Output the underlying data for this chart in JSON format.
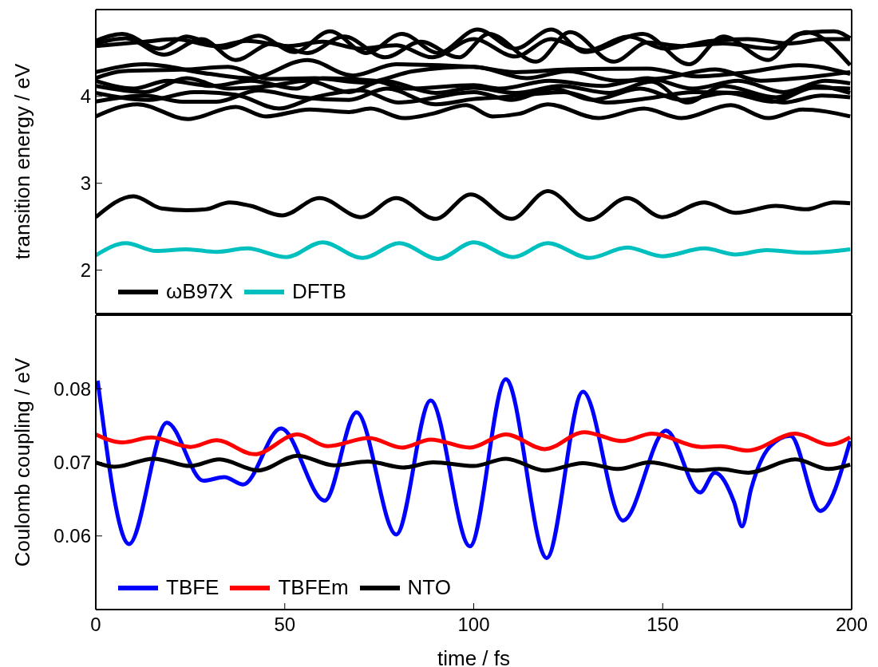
{
  "chart_data": [
    {
      "type": "line",
      "ylabel": "transition energy / eV",
      "xlim": [
        0,
        200
      ],
      "xticks": [
        0,
        50,
        100,
        150,
        200
      ],
      "ylim": [
        1.5,
        5
      ],
      "yticks": [
        2,
        3,
        4
      ],
      "tick_labels": "y",
      "legend": "bottom left",
      "series": [
        {
          "name": "ωB97X",
          "color": "#000000",
          "x": [
            0,
            11,
            24.4,
            37,
            45,
            56.7,
            67,
            72.7,
            81.6,
            89,
            98,
            105,
            112,
            119.6,
            133,
            145,
            155,
            168,
            178,
            187,
            199.6
          ],
          "values": [
            3.77,
            3.91,
            3.74,
            3.88,
            3.77,
            3.85,
            3.82,
            3.86,
            3.75,
            3.8,
            3.9,
            3.77,
            3.8,
            3.91,
            3.75,
            3.86,
            3.75,
            3.9,
            3.75,
            3.85,
            3.77
          ]
        },
        {
          "color": "#000000",
          "x": [
            0,
            7,
            16.7,
            24,
            33.7,
            43,
            52.6,
            62,
            71.6,
            81,
            90.6,
            101,
            111,
            120.5,
            129.5,
            144.7,
            157,
            166,
            178,
            186,
            195.4,
            199.6
          ],
          "values": [
            4.64,
            4.72,
            4.55,
            4.69,
            4.56,
            4.7,
            4.51,
            4.75,
            4.5,
            4.72,
            4.5,
            4.77,
            4.55,
            4.77,
            4.51,
            4.72,
            4.37,
            4.69,
            4.42,
            4.72,
            4.75,
            4.67
          ]
        },
        {
          "color": "#000000",
          "x": [
            0,
            8,
            18,
            28,
            37,
            46.7,
            56,
            65.7,
            76.6,
            86,
            96,
            104,
            116.5,
            125.5,
            137,
            146,
            155,
            166,
            179,
            188,
            199.6
          ],
          "values": [
            4.61,
            4.67,
            4.48,
            4.66,
            4.42,
            4.61,
            4.5,
            4.69,
            4.45,
            4.63,
            4.45,
            4.72,
            4.4,
            4.74,
            4.4,
            4.62,
            4.58,
            4.61,
            4.55,
            4.74,
            4.36
          ]
        },
        {
          "color": "#000000",
          "x": [
            0,
            13,
            21,
            32,
            40,
            51,
            60,
            70,
            79.5,
            89,
            100,
            111,
            120.5,
            130,
            141,
            150.5,
            163,
            172.5,
            183.5,
            193,
            199.6
          ],
          "values": [
            4.58,
            4.63,
            4.66,
            4.58,
            4.64,
            4.58,
            4.63,
            4.55,
            4.59,
            4.45,
            4.66,
            4.46,
            4.66,
            4.53,
            4.69,
            4.55,
            4.64,
            4.66,
            4.61,
            4.66,
            4.66
          ]
        },
        {
          "color": "#000000",
          "x": [
            0,
            13,
            30,
            41,
            56,
            68,
            79.5,
            100,
            111,
            125,
            146,
            159,
            172.5,
            186,
            199.6
          ],
          "values": [
            4.28,
            4.37,
            4.26,
            4.21,
            4.42,
            4.24,
            4.37,
            4.34,
            4.28,
            4.31,
            4.32,
            4.23,
            4.28,
            4.36,
            4.26
          ]
        },
        {
          "color": "#000000",
          "x": [
            0,
            7,
            24,
            35,
            46,
            58,
            71,
            84,
            100,
            114,
            125,
            138,
            150,
            164,
            176,
            186,
            199.6
          ],
          "values": [
            4.21,
            4.29,
            4.31,
            4.34,
            4.2,
            4.21,
            4.16,
            4.29,
            4.34,
            4.21,
            4.29,
            4.18,
            4.21,
            4.31,
            4.18,
            4.21,
            4.28
          ]
        },
        {
          "color": "#000000",
          "x": [
            0,
            10,
            19,
            31,
            41,
            53,
            60,
            74,
            82,
            100,
            107,
            120,
            134,
            146,
            158,
            170,
            182,
            193,
            199.6
          ],
          "values": [
            4.18,
            4.09,
            4.18,
            4.12,
            4.18,
            4.09,
            4.21,
            4.18,
            4.09,
            4.13,
            4.09,
            4.18,
            4.12,
            4.21,
            4.09,
            4.18,
            4.05,
            4.18,
            4.15
          ]
        },
        {
          "color": "#000000",
          "x": [
            0,
            13,
            24,
            35,
            46,
            56,
            67,
            76,
            90,
            100,
            111,
            123,
            136,
            147,
            156.5,
            166,
            180,
            190,
            199.6
          ],
          "values": [
            4.12,
            4.05,
            4.21,
            4.09,
            4.12,
            4.18,
            4.05,
            4.18,
            4.04,
            4.1,
            4.04,
            4.12,
            4.04,
            4.17,
            3.93,
            4.12,
            3.99,
            4.12,
            4.04
          ]
        },
        {
          "color": "#000000",
          "x": [
            0,
            14,
            26,
            37,
            48.5,
            58,
            70,
            80,
            100,
            110,
            121,
            131.5,
            144,
            155,
            167,
            179,
            190,
            199.6
          ],
          "values": [
            4.04,
            3.96,
            4.05,
            4.02,
            3.86,
            3.99,
            4.07,
            3.93,
            4.05,
            3.96,
            4.09,
            3.96,
            4.09,
            3.96,
            4.04,
            3.94,
            4.1,
            4.09
          ]
        },
        {
          "color": "#000000",
          "x": [
            0,
            13,
            23,
            32,
            43,
            54,
            67,
            77,
            90,
            100,
            107,
            124,
            135,
            148,
            158,
            170,
            182,
            192,
            199.6
          ],
          "values": [
            3.94,
            4.01,
            3.94,
            3.94,
            4.07,
            3.99,
            3.96,
            4.09,
            3.91,
            3.97,
            3.99,
            4.05,
            3.93,
            3.99,
            4.05,
            4.04,
            3.93,
            4.01,
            3.99
          ]
        },
        {
          "color": "#000000",
          "x": [
            0,
            10,
            17.4,
            24,
            29,
            35.4,
            41,
            49.3,
            59.2,
            70.2,
            79.5,
            89.9,
            99.2,
            110,
            119.6,
            130.6,
            140.6,
            149.9,
            161,
            169.3,
            180,
            188,
            195.3,
            199.6
          ],
          "values": [
            2.61,
            2.85,
            2.71,
            2.69,
            2.7,
            2.78,
            2.74,
            2.63,
            2.83,
            2.61,
            2.83,
            2.59,
            2.87,
            2.59,
            2.91,
            2.58,
            2.83,
            2.61,
            2.78,
            2.66,
            2.74,
            2.7,
            2.78,
            2.77
          ]
        },
        {
          "name": "DFTB",
          "color": "#00bfbf",
          "x": [
            0,
            8,
            16,
            24,
            32,
            40,
            50.5,
            60,
            70.6,
            80.3,
            90.6,
            100,
            110.4,
            119.6,
            130.6,
            140.6,
            149.9,
            161,
            169.3,
            177.5,
            188,
            199.6
          ],
          "values": [
            2.17,
            2.31,
            2.22,
            2.24,
            2.21,
            2.25,
            2.15,
            2.32,
            2.14,
            2.31,
            2.13,
            2.32,
            2.15,
            2.31,
            2.14,
            2.26,
            2.16,
            2.25,
            2.18,
            2.23,
            2.2,
            2.24
          ]
        }
      ]
    },
    {
      "type": "line",
      "xlabel": "time / fs",
      "ylabel": "Coulomb coupling / eV",
      "xlim": [
        0,
        200
      ],
      "xticks": [
        0,
        50,
        100,
        150,
        200
      ],
      "ylim": [
        0.05,
        0.09
      ],
      "yticks": [
        0.06,
        0.07,
        0.08
      ],
      "legend": "bottom left",
      "series": [
        {
          "name": "TBFE",
          "color": "#0000ff",
          "x": [
            0.5,
            8.8,
            18.8,
            28.5,
            34,
            39,
            49,
            60.6,
            69,
            79.5,
            88.6,
            99,
            108.5,
            119.3,
            128.9,
            139.5,
            150.9,
            159.9,
            163.8,
            168.9,
            171,
            173.4,
            178.3,
            183.8,
            191.7,
            199.6
          ],
          "values": [
            0.0811,
            0.0589,
            0.0754,
            0.0675,
            0.068,
            0.067,
            0.0746,
            0.0648,
            0.0768,
            0.0602,
            0.0784,
            0.0586,
            0.0813,
            0.057,
            0.0796,
            0.0621,
            0.0743,
            0.0659,
            0.0686,
            0.0646,
            0.0613,
            0.0664,
            0.0721,
            0.0736,
            0.0634,
            0.0729
          ]
        },
        {
          "name": "TBFEm",
          "color": "#ff0000",
          "x": [
            0,
            7,
            14.7,
            25,
            32,
            42,
            53.4,
            61.3,
            72.3,
            81,
            88.6,
            99,
            108.5,
            118.8,
            129.2,
            139.3,
            147.2,
            160.2,
            165.4,
            172.5,
            185.1,
            194.2,
            199.6
          ],
          "values": [
            0.0738,
            0.0727,
            0.0734,
            0.0721,
            0.073,
            0.0711,
            0.0738,
            0.0722,
            0.0733,
            0.072,
            0.0731,
            0.072,
            0.0738,
            0.0718,
            0.0741,
            0.0729,
            0.0739,
            0.0721,
            0.0722,
            0.0716,
            0.0739,
            0.0724,
            0.0734
          ]
        },
        {
          "name": "NTO",
          "color": "#000000",
          "x": [
            0,
            5,
            15.3,
            25,
            32.7,
            43,
            53.4,
            63,
            72,
            81.4,
            89.3,
            100,
            108.5,
            118.8,
            128.9,
            138.3,
            146.5,
            158.8,
            165,
            172.7,
            185.1,
            193.8,
            199.6
          ],
          "values": [
            0.07,
            0.0694,
            0.0705,
            0.0695,
            0.0704,
            0.0689,
            0.0709,
            0.0696,
            0.0701,
            0.0693,
            0.07,
            0.0695,
            0.0705,
            0.0689,
            0.0699,
            0.0691,
            0.07,
            0.0689,
            0.0691,
            0.0686,
            0.0704,
            0.0691,
            0.0697
          ]
        }
      ]
    }
  ]
}
